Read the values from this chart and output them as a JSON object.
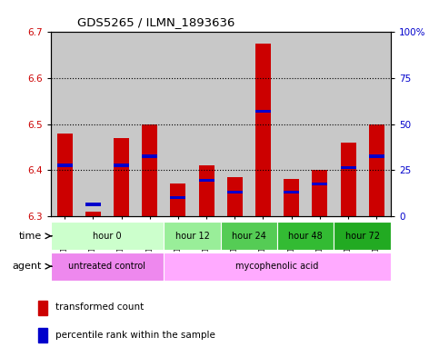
{
  "title": "GDS5265 / ILMN_1893636",
  "samples": [
    "GSM1133722",
    "GSM1133723",
    "GSM1133724",
    "GSM1133725",
    "GSM1133726",
    "GSM1133727",
    "GSM1133728",
    "GSM1133729",
    "GSM1133730",
    "GSM1133731",
    "GSM1133732",
    "GSM1133733"
  ],
  "bar_tops": [
    6.48,
    6.31,
    6.47,
    6.5,
    6.37,
    6.41,
    6.385,
    6.675,
    6.38,
    6.4,
    6.46,
    6.5
  ],
  "bar_base": 6.3,
  "blue_vals": [
    6.41,
    6.325,
    6.41,
    6.43,
    6.34,
    6.378,
    6.352,
    6.528,
    6.352,
    6.37,
    6.405,
    6.43
  ],
  "ylim": [
    6.3,
    6.7
  ],
  "y2lim": [
    0,
    100
  ],
  "y_ticks": [
    6.3,
    6.4,
    6.5,
    6.6,
    6.7
  ],
  "y2_ticks": [
    0,
    25,
    50,
    75,
    100
  ],
  "y2_labels": [
    "0",
    "25",
    "50",
    "75",
    "100%"
  ],
  "bar_color": "#cc0000",
  "blue_color": "#0000cc",
  "col_bg_color": "#c8c8c8",
  "time_groups": [
    {
      "label": "hour 0",
      "start": 0,
      "end": 4,
      "color": "#ccffcc"
    },
    {
      "label": "hour 12",
      "start": 4,
      "end": 6,
      "color": "#99ee99"
    },
    {
      "label": "hour 24",
      "start": 6,
      "end": 8,
      "color": "#55cc55"
    },
    {
      "label": "hour 48",
      "start": 8,
      "end": 10,
      "color": "#33bb33"
    },
    {
      "label": "hour 72",
      "start": 10,
      "end": 12,
      "color": "#22aa22"
    }
  ],
  "agent_groups": [
    {
      "label": "untreated control",
      "start": 0,
      "end": 4,
      "color": "#ee88ee"
    },
    {
      "label": "mycophenolic acid",
      "start": 4,
      "end": 12,
      "color": "#ffaaff"
    }
  ]
}
